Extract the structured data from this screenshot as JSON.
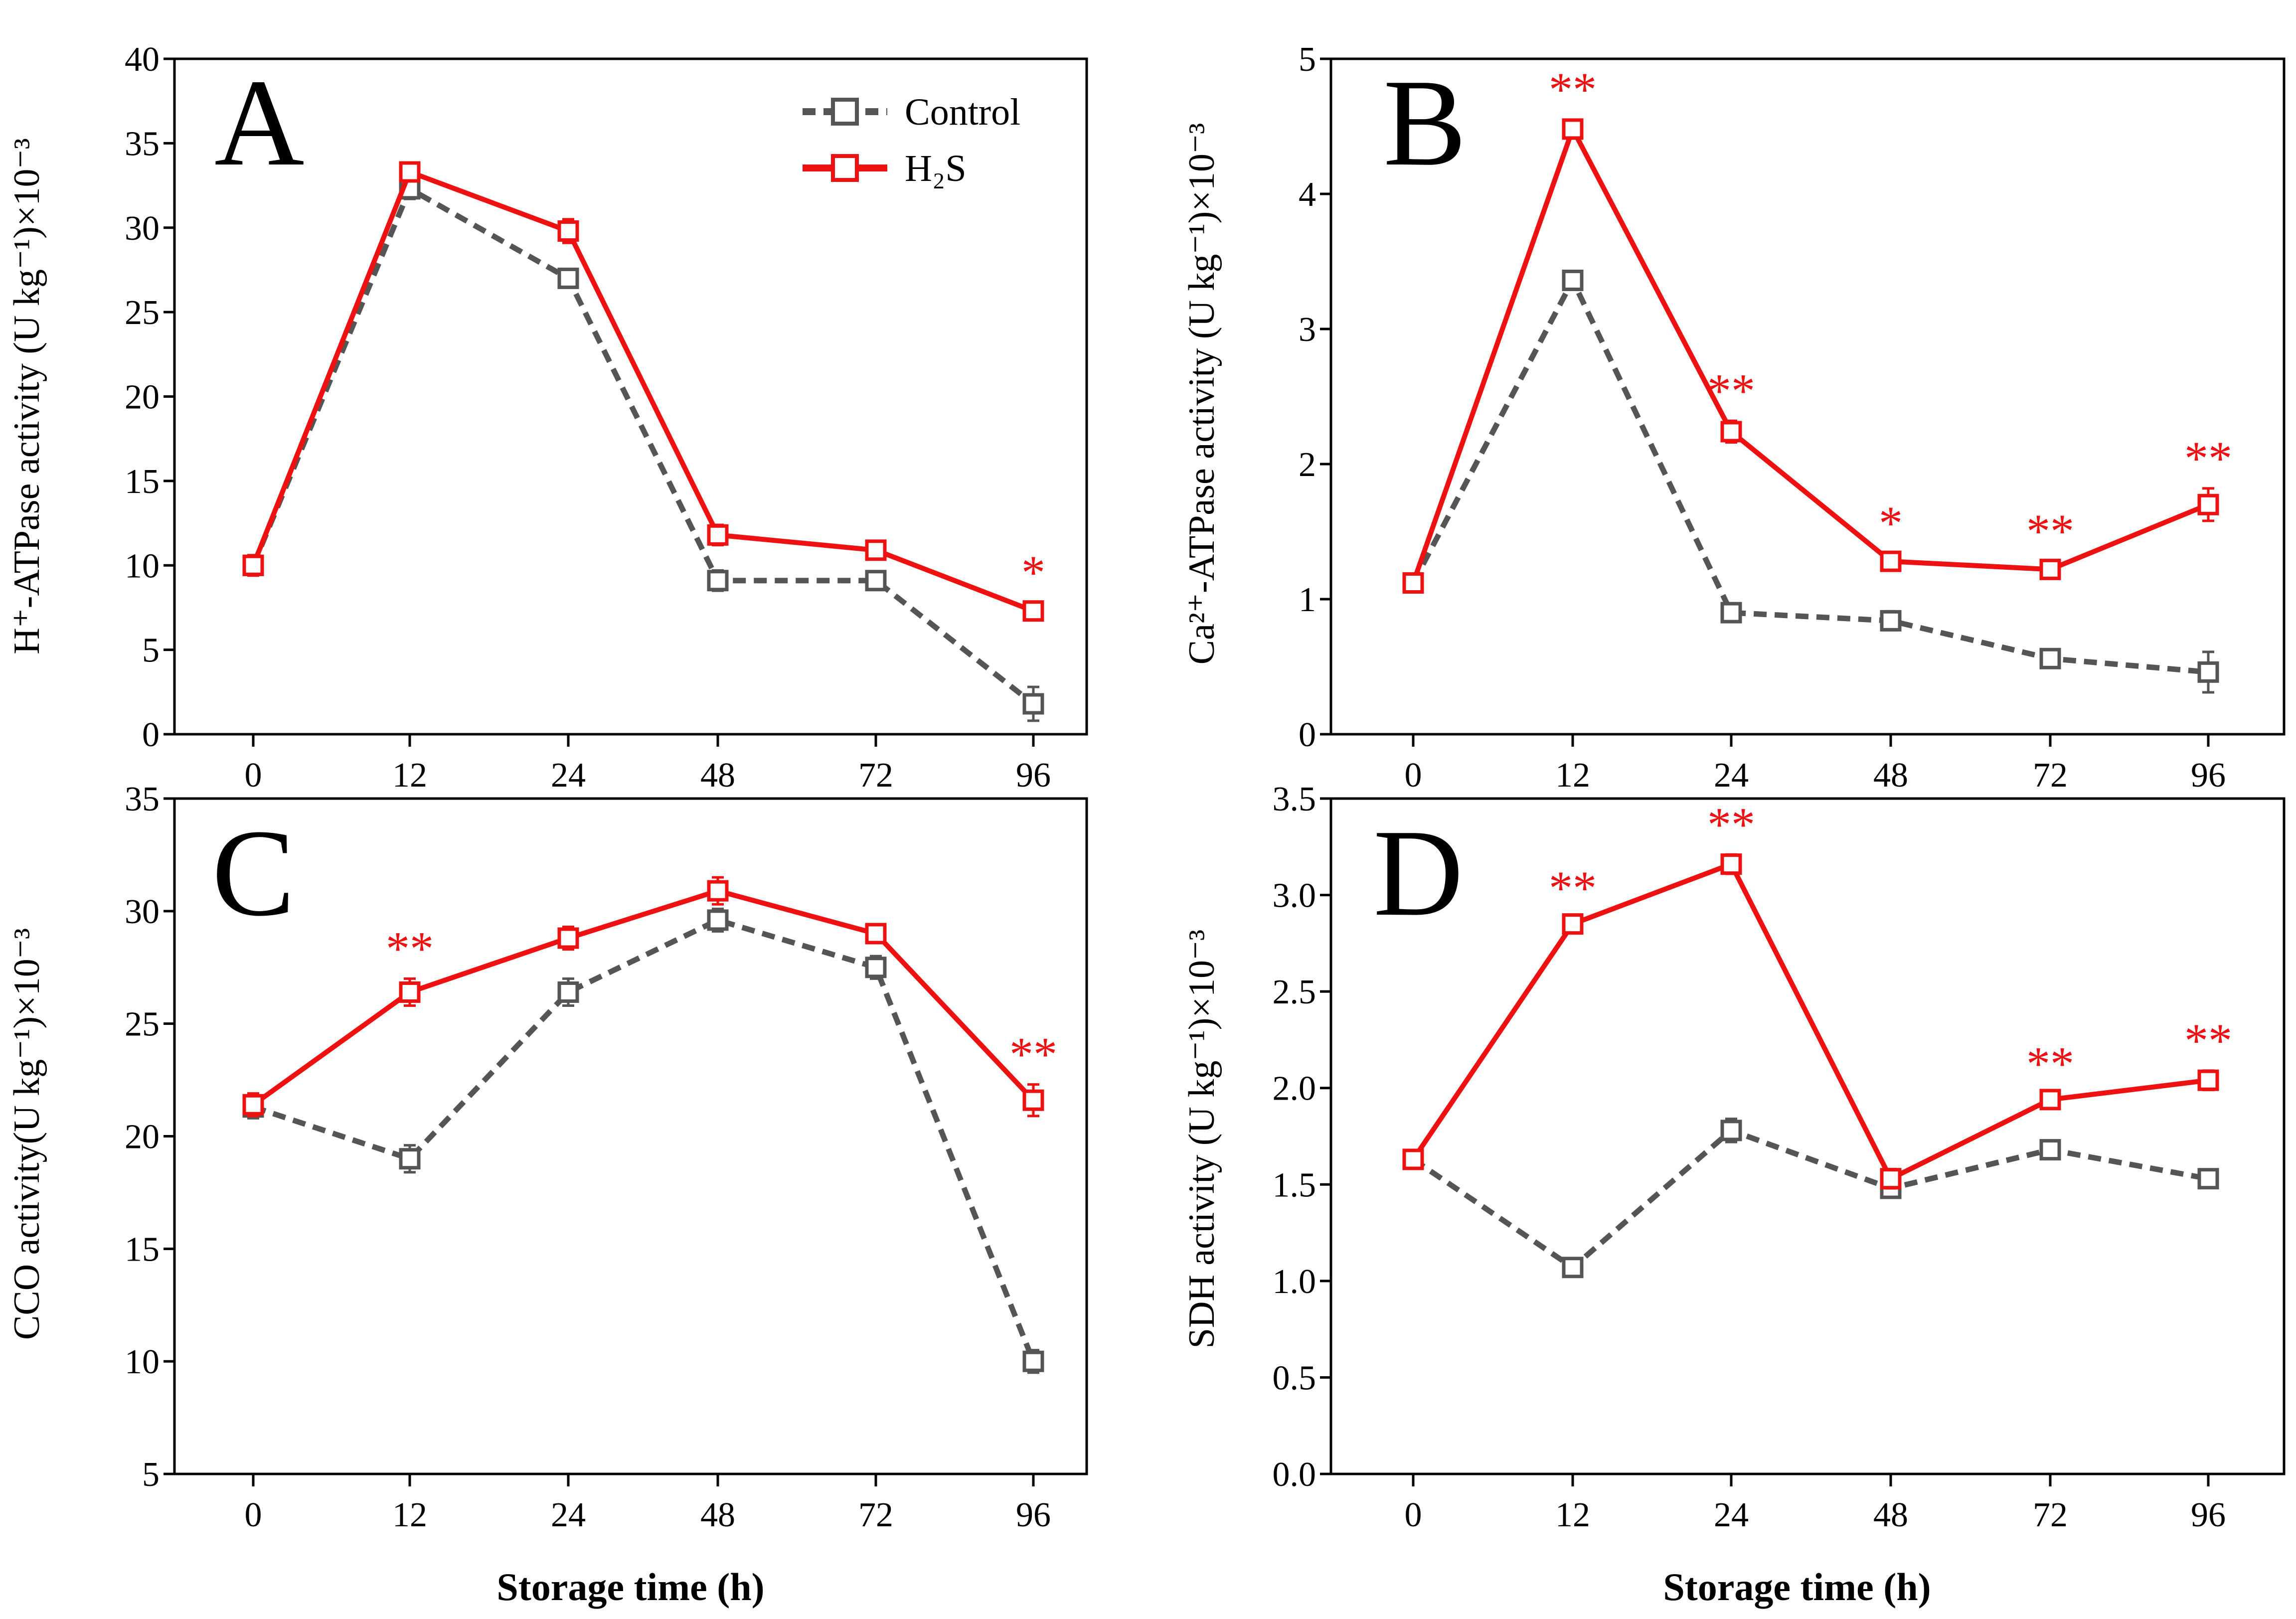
{
  "figure": {
    "xlabel": "Storage time (h)",
    "legend": [
      {
        "name": "Control",
        "color": "#555555",
        "style": "dashed"
      },
      {
        "name": "H₂S",
        "color": "#ee1111",
        "style": "solid"
      }
    ]
  },
  "chart_data": [
    {
      "type": "line",
      "panel": "A",
      "ylabel": "H⁺-ATPase activity (U kg⁻¹)×10⁻³",
      "xlabel": "Storage time (h)",
      "categories": [
        "0",
        "12",
        "24",
        "48",
        "72",
        "96"
      ],
      "ylim": [
        0,
        40
      ],
      "yticks": [
        0,
        5,
        10,
        15,
        20,
        25,
        30,
        35,
        40
      ],
      "series": [
        {
          "name": "Control",
          "values": [
            10.0,
            32.3,
            27.0,
            9.1,
            9.1,
            1.8
          ],
          "errors": [
            0.6,
            0.6,
            0.5,
            0.6,
            0.5,
            1.0
          ]
        },
        {
          "name": "H₂S",
          "values": [
            10.0,
            33.3,
            29.8,
            11.8,
            10.9,
            7.3
          ],
          "errors": [
            0.6,
            0.5,
            0.7,
            0.6,
            0.5,
            0.5
          ]
        }
      ],
      "significance": [
        "",
        "",
        "",
        "",
        "",
        "*"
      ]
    },
    {
      "type": "line",
      "panel": "B",
      "ylabel": "Ca²⁺-ATPase activity (U kg⁻¹)×10⁻³",
      "xlabel": "Storage time (h)",
      "categories": [
        "0",
        "12",
        "24",
        "48",
        "72",
        "96"
      ],
      "ylim": [
        0,
        5
      ],
      "yticks": [
        0,
        1,
        2,
        3,
        4,
        5
      ],
      "series": [
        {
          "name": "Control",
          "values": [
            1.12,
            3.36,
            0.9,
            0.84,
            0.56,
            0.46
          ],
          "errors": [
            0.06,
            0.07,
            0.06,
            0.07,
            0.06,
            0.15
          ]
        },
        {
          "name": "H₂S",
          "values": [
            1.12,
            4.48,
            2.24,
            1.28,
            1.22,
            1.7
          ],
          "errors": [
            0.06,
            0.07,
            0.08,
            0.06,
            0.06,
            0.12
          ]
        }
      ],
      "significance": [
        "",
        "**",
        "**",
        "*",
        "**",
        "**"
      ]
    },
    {
      "type": "line",
      "panel": "C",
      "ylabel": "CCO activity(U kg⁻¹)×10⁻³",
      "xlabel": "Storage time (h)",
      "categories": [
        "0",
        "12",
        "24",
        "48",
        "72",
        "96"
      ],
      "ylim": [
        5,
        35
      ],
      "yticks": [
        5,
        10,
        15,
        20,
        25,
        30,
        35
      ],
      "series": [
        {
          "name": "Control",
          "values": [
            21.3,
            19.0,
            26.4,
            29.6,
            27.5,
            10.0
          ],
          "errors": [
            0.5,
            0.6,
            0.6,
            0.5,
            0.5,
            0.5
          ]
        },
        {
          "name": "H₂S",
          "values": [
            21.4,
            26.4,
            28.8,
            30.9,
            29.0,
            21.6
          ],
          "errors": [
            0.5,
            0.6,
            0.5,
            0.6,
            0.4,
            0.7
          ]
        }
      ],
      "significance": [
        "",
        "**",
        "",
        "",
        "",
        "**"
      ]
    },
    {
      "type": "line",
      "panel": "D",
      "ylabel": "SDH activity (U kg⁻¹)×10⁻³",
      "xlabel": "Storage time (h)",
      "categories": [
        "0",
        "12",
        "24",
        "48",
        "72",
        "96"
      ],
      "ylim": [
        0,
        3.5
      ],
      "yticks": [
        "0.0",
        "0.5",
        "1.0",
        "1.5",
        "2.0",
        "2.5",
        "3.0",
        "3.5"
      ],
      "series": [
        {
          "name": "Control",
          "values": [
            1.63,
            1.07,
            1.78,
            1.48,
            1.68,
            1.53
          ],
          "errors": [
            0.04,
            0.04,
            0.06,
            0.03,
            0.04,
            0.03
          ]
        },
        {
          "name": "H₂S",
          "values": [
            1.63,
            2.85,
            3.16,
            1.53,
            1.94,
            2.04
          ],
          "errors": [
            0.04,
            0.03,
            0.05,
            0.05,
            0.03,
            0.05
          ]
        }
      ],
      "significance": [
        "",
        "**",
        "**",
        "",
        "**",
        "**"
      ]
    }
  ]
}
